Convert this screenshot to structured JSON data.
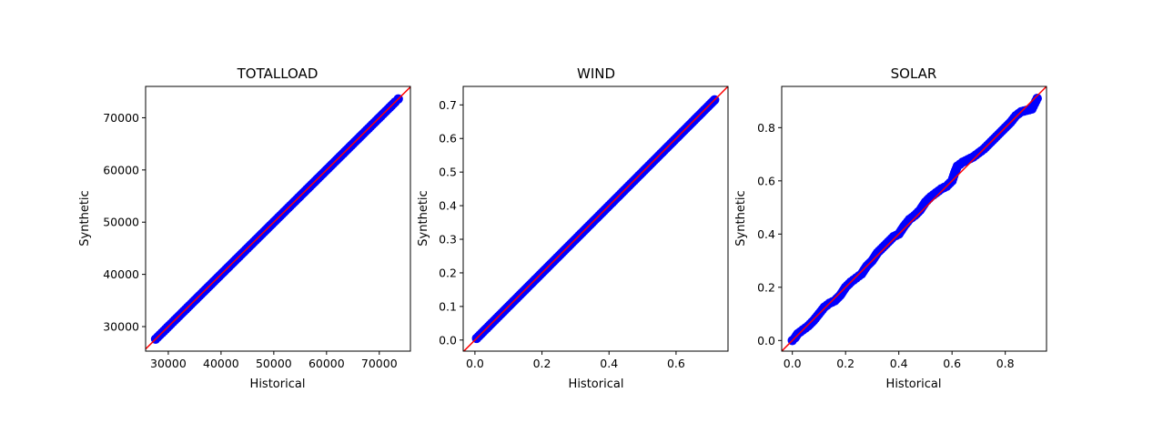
{
  "chart_data": [
    {
      "type": "scatter",
      "title": "TOTALLOAD",
      "xlabel": "Historical",
      "ylabel": "Synthetic",
      "xlim": [
        25700,
        75900
      ],
      "ylim": [
        25300,
        76000
      ],
      "xticks": [
        30000,
        40000,
        50000,
        60000,
        70000
      ],
      "yticks": [
        30000,
        40000,
        50000,
        60000,
        70000
      ],
      "xtick_labels": [
        "30000",
        "40000",
        "50000",
        "60000",
        "70000"
      ],
      "ytick_labels": [
        "30000",
        "40000",
        "50000",
        "60000",
        "70000"
      ],
      "reference_line": "y = x",
      "series": [
        {
          "color": "#0000ff",
          "x": [
            27600,
            28000,
            28800,
            29500,
            30500,
            32000,
            35000,
            40000,
            45000,
            50000,
            55000,
            60000,
            65000,
            68000,
            70000,
            72000,
            73000,
            73600
          ],
          "y": [
            27600,
            28000,
            28800,
            29500,
            30500,
            32000,
            35000,
            40000,
            45000,
            50000,
            55000,
            60000,
            65000,
            68000,
            70000,
            72000,
            73000,
            73600
          ]
        }
      ]
    },
    {
      "type": "scatter",
      "title": "WIND",
      "xlabel": "Historical",
      "ylabel": "Synthetic",
      "xlim": [
        -0.035,
        0.755
      ],
      "ylim": [
        -0.033,
        0.755
      ],
      "xticks": [
        0.0,
        0.2,
        0.4,
        0.6
      ],
      "yticks": [
        0.0,
        0.1,
        0.2,
        0.3,
        0.4,
        0.5,
        0.6,
        0.7
      ],
      "xtick_labels": [
        "0.0",
        "0.2",
        "0.4",
        "0.6"
      ],
      "ytick_labels": [
        "0.0",
        "0.1",
        "0.2",
        "0.3",
        "0.4",
        "0.5",
        "0.6",
        "0.7"
      ],
      "reference_line": "y = x",
      "series": [
        {
          "color": "#0000ff",
          "x": [
            0.005,
            0.01,
            0.03,
            0.06,
            0.1,
            0.15,
            0.2,
            0.25,
            0.3,
            0.35,
            0.4,
            0.45,
            0.5,
            0.55,
            0.6,
            0.65,
            0.68,
            0.7,
            0.715
          ],
          "y": [
            0.005,
            0.01,
            0.03,
            0.06,
            0.1,
            0.15,
            0.2,
            0.25,
            0.3,
            0.35,
            0.4,
            0.45,
            0.5,
            0.55,
            0.6,
            0.65,
            0.68,
            0.7,
            0.715
          ]
        }
      ]
    },
    {
      "type": "scatter",
      "title": "SOLAR",
      "xlabel": "Historical",
      "ylabel": "Synthetic",
      "xlim": [
        -0.04,
        0.955
      ],
      "ylim": [
        -0.04,
        0.955
      ],
      "xticks": [
        0.0,
        0.2,
        0.4,
        0.6,
        0.8
      ],
      "yticks": [
        0.0,
        0.2,
        0.4,
        0.6,
        0.8
      ],
      "xtick_labels": [
        "0.0",
        "0.2",
        "0.4",
        "0.6",
        "0.8"
      ],
      "ytick_labels": [
        "0.0",
        "0.2",
        "0.4",
        "0.6",
        "0.8"
      ],
      "reference_line": "y = x",
      "series": [
        {
          "color": "#0000ff",
          "x": [
            0.0,
            0.01,
            0.02,
            0.04,
            0.06,
            0.08,
            0.1,
            0.12,
            0.14,
            0.16,
            0.18,
            0.2,
            0.22,
            0.24,
            0.26,
            0.28,
            0.3,
            0.32,
            0.34,
            0.36,
            0.38,
            0.4,
            0.42,
            0.44,
            0.46,
            0.48,
            0.5,
            0.52,
            0.54,
            0.56,
            0.58,
            0.6,
            0.61,
            0.62,
            0.64,
            0.66,
            0.68,
            0.7,
            0.72,
            0.74,
            0.76,
            0.78,
            0.8,
            0.82,
            0.84,
            0.86,
            0.88,
            0.9,
            0.91,
            0.92
          ],
          "y": [
            0.0,
            0.01,
            0.025,
            0.04,
            0.055,
            0.075,
            0.1,
            0.125,
            0.14,
            0.15,
            0.17,
            0.2,
            0.22,
            0.235,
            0.25,
            0.28,
            0.3,
            0.33,
            0.35,
            0.37,
            0.39,
            0.4,
            0.43,
            0.455,
            0.47,
            0.49,
            0.52,
            0.54,
            0.555,
            0.57,
            0.58,
            0.6,
            0.63,
            0.655,
            0.67,
            0.68,
            0.69,
            0.705,
            0.72,
            0.74,
            0.76,
            0.78,
            0.8,
            0.82,
            0.845,
            0.86,
            0.865,
            0.87,
            0.89,
            0.91
          ]
        }
      ]
    }
  ]
}
